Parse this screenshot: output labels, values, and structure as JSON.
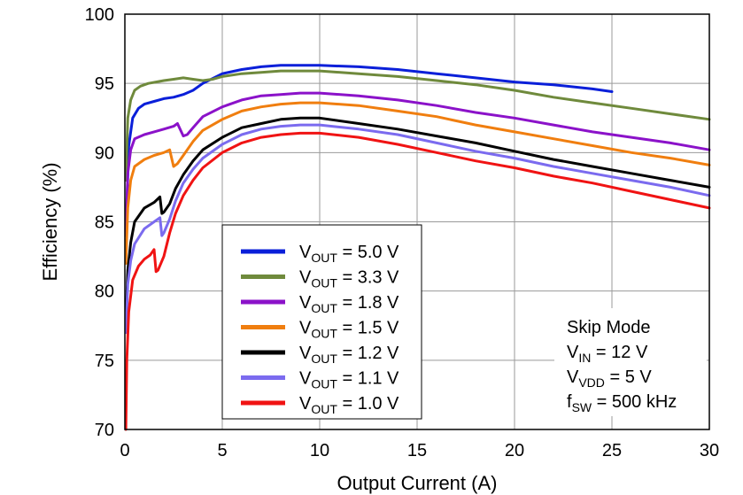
{
  "chart_data": {
    "type": "line",
    "xlabel": "Output Current (A)",
    "ylabel": "Efficiency (%)",
    "xlim": [
      0,
      30
    ],
    "ylim": [
      70,
      100
    ],
    "xticks": [
      0,
      5,
      10,
      15,
      20,
      25,
      30
    ],
    "yticks": [
      70,
      75,
      80,
      85,
      90,
      95,
      100
    ],
    "grid": true,
    "legend_position": "bottom-center",
    "annotation": [
      {
        "main": "Skip Mode",
        "sub": ""
      },
      {
        "main": "V",
        "sub": "IN",
        "rest": " = 12 V"
      },
      {
        "main": "V",
        "sub": "VDD",
        "rest": " = 5 V"
      },
      {
        "main": "f",
        "sub": "SW",
        "rest": " = 500 kHz"
      }
    ],
    "series": [
      {
        "name": "VOUT = 5.0 V",
        "label_main": "V",
        "label_sub": "OUT",
        "label_rest": " = 5.0 V",
        "color": "#0a1fd9",
        "x": [
          0.05,
          0.2,
          0.4,
          0.7,
          1.0,
          1.5,
          2.0,
          2.5,
          3.0,
          3.5,
          4.0,
          5.0,
          6.0,
          7.0,
          8.0,
          9.0,
          10.0,
          12.0,
          14.0,
          16.0,
          18.0,
          20.0,
          22.0,
          24.0,
          25.0
        ],
        "y": [
          84.0,
          90.5,
          92.5,
          93.2,
          93.5,
          93.7,
          93.9,
          94.0,
          94.2,
          94.5,
          95.0,
          95.7,
          96.0,
          96.2,
          96.3,
          96.3,
          96.3,
          96.2,
          96.0,
          95.7,
          95.4,
          95.1,
          94.9,
          94.6,
          94.4
        ]
      },
      {
        "name": "VOUT = 3.3 V",
        "label_main": "V",
        "label_sub": "OUT",
        "label_rest": " = 3.3 V",
        "color": "#6f8a3c",
        "x": [
          0.05,
          0.15,
          0.3,
          0.5,
          0.8,
          1.2,
          1.6,
          2.0,
          2.5,
          3.0,
          3.5,
          4.0,
          4.5,
          5.0,
          6.0,
          7.0,
          8.0,
          9.0,
          10.0,
          12.0,
          14.0,
          16.0,
          18.0,
          20.0,
          22.0,
          24.0,
          26.0,
          28.0,
          30.0
        ],
        "y": [
          88.0,
          92.5,
          93.8,
          94.5,
          94.8,
          95.0,
          95.1,
          95.2,
          95.3,
          95.4,
          95.3,
          95.2,
          95.3,
          95.5,
          95.7,
          95.8,
          95.9,
          95.9,
          95.9,
          95.7,
          95.5,
          95.2,
          94.9,
          94.5,
          94.0,
          93.6,
          93.2,
          92.8,
          92.4
        ]
      },
      {
        "name": "VOUT = 1.8 V",
        "label_main": "V",
        "label_sub": "OUT",
        "label_rest": " = 1.8 V",
        "color": "#8b12c9",
        "x": [
          0.05,
          0.15,
          0.3,
          0.5,
          1.0,
          1.5,
          2.0,
          2.5,
          2.7,
          3.0,
          3.2,
          3.5,
          4.0,
          5.0,
          6.0,
          7.0,
          8.0,
          9.0,
          10.0,
          12.0,
          14.0,
          16.0,
          18.0,
          20.0,
          22.0,
          24.0,
          26.0,
          28.0,
          30.0
        ],
        "y": [
          84.0,
          88.5,
          90.2,
          91.0,
          91.3,
          91.5,
          91.7,
          91.9,
          92.1,
          91.2,
          91.3,
          91.8,
          92.6,
          93.3,
          93.8,
          94.1,
          94.2,
          94.3,
          94.3,
          94.1,
          93.8,
          93.4,
          92.9,
          92.5,
          92.0,
          91.5,
          91.1,
          90.7,
          90.2
        ]
      },
      {
        "name": "VOUT = 1.5 V",
        "label_main": "V",
        "label_sub": "OUT",
        "label_rest": " = 1.5 V",
        "color": "#f07e0f",
        "x": [
          0.05,
          0.15,
          0.3,
          0.5,
          1.0,
          1.5,
          2.0,
          2.3,
          2.5,
          2.7,
          3.0,
          3.5,
          4.0,
          5.0,
          6.0,
          7.0,
          8.0,
          9.0,
          10.0,
          12.0,
          14.0,
          16.0,
          18.0,
          20.0,
          22.0,
          24.0,
          26.0,
          28.0,
          30.0
        ],
        "y": [
          82.0,
          86.0,
          88.0,
          89.0,
          89.5,
          89.8,
          90.0,
          90.2,
          89.0,
          89.2,
          89.8,
          90.8,
          91.6,
          92.4,
          93.0,
          93.3,
          93.5,
          93.6,
          93.6,
          93.4,
          93.0,
          92.6,
          92.0,
          91.5,
          91.0,
          90.5,
          90.0,
          89.6,
          89.1
        ]
      },
      {
        "name": "VOUT = 1.2 V",
        "label_main": "V",
        "label_sub": "OUT",
        "label_rest": " = 1.2 V",
        "color": "#000000",
        "x": [
          0.05,
          0.15,
          0.3,
          0.5,
          1.0,
          1.5,
          1.8,
          1.9,
          2.0,
          2.3,
          2.6,
          3.0,
          3.5,
          4.0,
          5.0,
          6.0,
          7.0,
          8.0,
          9.0,
          10.0,
          12.0,
          14.0,
          16.0,
          18.0,
          20.0,
          22.0,
          24.0,
          26.0,
          28.0,
          30.0
        ],
        "y": [
          78.0,
          81.5,
          83.5,
          85.0,
          86.0,
          86.4,
          86.8,
          85.6,
          85.7,
          86.3,
          87.4,
          88.4,
          89.4,
          90.2,
          91.1,
          91.8,
          92.1,
          92.4,
          92.5,
          92.5,
          92.1,
          91.7,
          91.2,
          90.7,
          90.1,
          89.5,
          89.0,
          88.5,
          88.0,
          87.5
        ]
      },
      {
        "name": "VOUT = 1.1 V",
        "label_main": "V",
        "label_sub": "OUT",
        "label_rest": " = 1.1 V",
        "color": "#7b6bef",
        "x": [
          0.05,
          0.15,
          0.3,
          0.5,
          1.0,
          1.5,
          1.8,
          1.9,
          2.0,
          2.3,
          2.6,
          3.0,
          3.5,
          4.0,
          5.0,
          6.0,
          7.0,
          8.0,
          9.0,
          10.0,
          12.0,
          14.0,
          16.0,
          18.0,
          20.0,
          22.0,
          24.0,
          26.0,
          28.0,
          30.0
        ],
        "y": [
          77.0,
          80.5,
          82.2,
          83.4,
          84.5,
          85.0,
          85.3,
          84.0,
          84.2,
          85.2,
          86.5,
          87.8,
          88.8,
          89.6,
          90.6,
          91.3,
          91.7,
          91.9,
          92.0,
          92.0,
          91.7,
          91.3,
          90.7,
          90.1,
          89.6,
          89.0,
          88.5,
          88.0,
          87.5,
          86.9
        ]
      },
      {
        "name": "VOUT = 1.0 V",
        "label_main": "V",
        "label_sub": "OUT",
        "label_rest": " = 1.0 V",
        "color": "#f01313",
        "x": [
          0.05,
          0.1,
          0.2,
          0.4,
          0.7,
          1.0,
          1.3,
          1.5,
          1.6,
          1.7,
          2.0,
          2.3,
          2.6,
          3.0,
          3.5,
          4.0,
          5.0,
          6.0,
          7.0,
          8.0,
          9.0,
          10.0,
          12.0,
          14.0,
          16.0,
          18.0,
          20.0,
          22.0,
          24.0,
          26.0,
          28.0,
          30.0
        ],
        "y": [
          70.0,
          75.0,
          78.5,
          80.8,
          81.8,
          82.3,
          82.6,
          83.0,
          81.4,
          81.5,
          82.5,
          84.2,
          85.6,
          86.9,
          88.0,
          88.9,
          90.0,
          90.7,
          91.1,
          91.3,
          91.4,
          91.4,
          91.1,
          90.6,
          90.0,
          89.4,
          88.9,
          88.3,
          87.8,
          87.2,
          86.6,
          86.0
        ]
      }
    ]
  }
}
